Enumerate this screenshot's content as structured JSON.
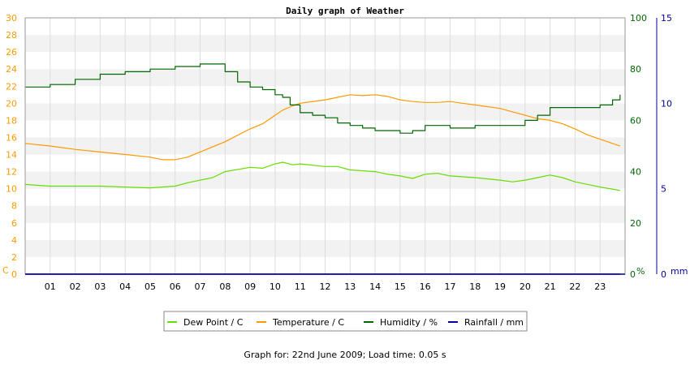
{
  "chart_data": {
    "type": "line",
    "title": "Daily graph of Weather",
    "xlabel": "",
    "x_ticks": [
      "01",
      "02",
      "03",
      "04",
      "05",
      "06",
      "07",
      "08",
      "09",
      "10",
      "11",
      "12",
      "13",
      "14",
      "15",
      "16",
      "17",
      "18",
      "19",
      "20",
      "21",
      "22",
      "23"
    ],
    "xlim": [
      0,
      24
    ],
    "axes": {
      "left": {
        "unit": "C",
        "ylim": [
          0,
          30
        ],
        "ticks": [
          "0",
          "2",
          "4",
          "6",
          "8",
          "10",
          "12",
          "14",
          "16",
          "18",
          "20",
          "22",
          "24",
          "26",
          "28",
          "30"
        ],
        "color": "#ff9900"
      },
      "right1": {
        "unit": "%",
        "ylim": [
          0,
          100
        ],
        "ticks": [
          "0",
          "20",
          "40",
          "60",
          "80",
          "100"
        ],
        "color": "#006600"
      },
      "right2": {
        "unit": "mm",
        "ylim": [
          0,
          15
        ],
        "ticks": [
          "0",
          "5",
          "10",
          "15"
        ],
        "color": "#0000a0"
      }
    },
    "series": [
      {
        "name": "Dew Point / C",
        "axis": "left",
        "color": "#66dd00",
        "x": [
          0,
          1,
          2,
          3,
          4,
          5,
          6,
          6.5,
          7.5,
          8,
          9,
          9.5,
          10,
          10.3,
          10.7,
          11,
          12,
          12.5,
          13,
          14,
          14.5,
          15,
          15.5,
          16,
          16.5,
          17,
          18,
          19,
          19.5,
          20,
          20.5,
          21,
          21.5,
          22,
          23,
          23.8
        ],
        "y": [
          10.5,
          10.3,
          10.3,
          10.3,
          10.2,
          10.1,
          10.3,
          10.7,
          11.3,
          12.0,
          12.5,
          12.4,
          12.9,
          13.1,
          12.8,
          12.9,
          12.6,
          12.6,
          12.2,
          12.0,
          11.7,
          11.5,
          11.2,
          11.7,
          11.8,
          11.5,
          11.3,
          11.0,
          10.8,
          11.0,
          11.3,
          11.6,
          11.3,
          10.8,
          10.2,
          9.8
        ]
      },
      {
        "name": "Temperature / C",
        "axis": "left",
        "color": "#ff9900",
        "x": [
          0,
          1,
          2,
          3,
          4,
          5,
          5.5,
          6,
          6.5,
          7,
          8,
          9,
          9.5,
          10,
          10.3,
          10.7,
          11,
          12,
          13,
          13.5,
          14,
          14.5,
          15,
          15.5,
          16,
          16.5,
          17,
          17.5,
          18,
          19,
          19.5,
          20,
          20.5,
          21,
          21.5,
          22,
          22.5,
          23,
          23.8
        ],
        "y": [
          15.3,
          15.0,
          14.6,
          14.3,
          14.0,
          13.7,
          13.4,
          13.4,
          13.7,
          14.3,
          15.5,
          17.0,
          17.6,
          18.6,
          19.2,
          19.7,
          20.0,
          20.4,
          21.0,
          20.9,
          21.0,
          20.8,
          20.4,
          20.2,
          20.1,
          20.1,
          20.2,
          20.0,
          19.8,
          19.4,
          19.0,
          18.6,
          18.2,
          18.0,
          17.6,
          17.0,
          16.3,
          15.8,
          15.0
        ]
      },
      {
        "name": "Humidity / %",
        "axis": "right1",
        "color": "#006600",
        "x": [
          0,
          0.6,
          1,
          1.9,
          2,
          2.9,
          3,
          3.9,
          4,
          4.9,
          5,
          5.9,
          6,
          6.9,
          7,
          7.6,
          8,
          8.5,
          9,
          9.5,
          10,
          10.3,
          10.6,
          11,
          11.5,
          12,
          12.5,
          13,
          13.5,
          14,
          14.5,
          15,
          15.5,
          16,
          16.5,
          17,
          17.5,
          18,
          18.5,
          19,
          19.5,
          20,
          20.5,
          21,
          21.5,
          22,
          22.5,
          23,
          23.5,
          23.8
        ],
        "y": [
          73,
          73,
          74,
          74,
          76,
          76,
          78,
          78,
          79,
          79,
          80,
          80,
          81,
          81,
          82,
          82,
          79,
          75,
          73,
          72,
          70,
          69,
          66,
          63,
          62,
          61,
          59,
          58,
          57,
          56,
          56,
          55,
          56,
          58,
          58,
          57,
          57,
          58,
          58,
          58,
          58,
          60,
          62,
          65,
          65,
          65,
          65,
          66,
          68,
          70
        ]
      },
      {
        "name": "Rainfall / mm",
        "axis": "right2",
        "color": "#0000a0",
        "x": [
          0,
          23.8
        ],
        "y": [
          0,
          0
        ]
      }
    ],
    "legend_position": "bottom-center",
    "grid": true
  },
  "footer": "Graph for: 22nd June 2009; Load time: 0.05 s"
}
